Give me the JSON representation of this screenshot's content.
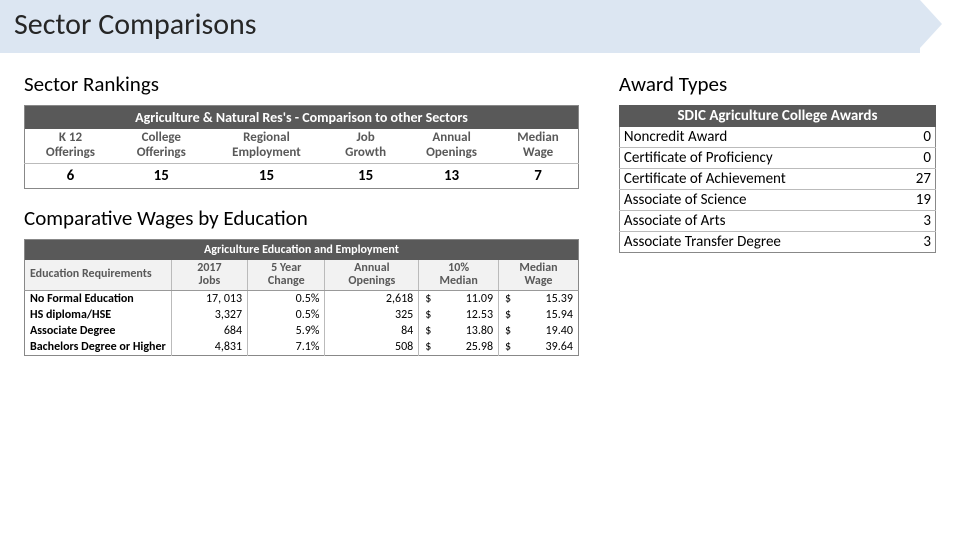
{
  "page_title": "Sector Comparisons",
  "rankings": {
    "heading": "Sector Rankings",
    "table_title": "Agriculture & Natural Res's - Comparison to other Sectors",
    "columns": [
      {
        "line1": "K 12",
        "line2": "Offerings"
      },
      {
        "line1": "College",
        "line2": "Offerings"
      },
      {
        "line1": "Regional",
        "line2": "Employment"
      },
      {
        "line1": "Job",
        "line2": "Growth"
      },
      {
        "line1": "Annual",
        "line2": "Openings"
      },
      {
        "line1": "Median",
        "line2": "Wage"
      }
    ],
    "values": [
      "6",
      "15",
      "15",
      "15",
      "13",
      "7"
    ]
  },
  "wages": {
    "heading": "Comparative Wages by Education",
    "table_title": "Agriculture Education and Employment",
    "col_edreq": "Education Requirements",
    "columns": [
      {
        "line1": "2017",
        "line2": "Jobs"
      },
      {
        "line1": "5 Year",
        "line2": "Change"
      },
      {
        "line1": "Annual",
        "line2": "Openings"
      },
      {
        "line1": "10%",
        "line2": "Median"
      },
      {
        "line1": "Median",
        "line2": "Wage"
      }
    ],
    "rows": [
      {
        "label": "No Formal Education",
        "jobs": "17, 013",
        "change": "0.5%",
        "openings": "2,618",
        "p10": "11.09",
        "median": "15.39"
      },
      {
        "label": "HS diploma/HSE",
        "jobs": "3,327",
        "change": "0.5%",
        "openings": "325",
        "p10": "12.53",
        "median": "15.94"
      },
      {
        "label": "Associate Degree",
        "jobs": "684",
        "change": "5.9%",
        "openings": "84",
        "p10": "13.80",
        "median": "19.40"
      },
      {
        "label": "Bachelors Degree or Higher",
        "jobs": "4,831",
        "change": "7.1%",
        "openings": "508",
        "p10": "25.98",
        "median": "39.64"
      }
    ],
    "currency_symbol": "$"
  },
  "awards": {
    "heading": "Award Types",
    "table_title": "SDIC Agriculture College Awards",
    "rows": [
      {
        "label": "Noncredit Award",
        "value": "0"
      },
      {
        "label": "Certificate of Proficiency",
        "value": "0"
      },
      {
        "label": "Certificate of Achievement",
        "value": "27"
      },
      {
        "label": "Associate of Science",
        "value": "19"
      },
      {
        "label": "Associate of Arts",
        "value": "3"
      },
      {
        "label": "Associate Transfer Degree",
        "value": "3"
      }
    ]
  },
  "colors": {
    "banner_bg": "#dce6f2",
    "dark_header_bg": "#595959",
    "dark_header_text": "#ffffff",
    "grey_text": "#595959",
    "grid": "#bbbbbb",
    "page_bg": "#ffffff"
  }
}
